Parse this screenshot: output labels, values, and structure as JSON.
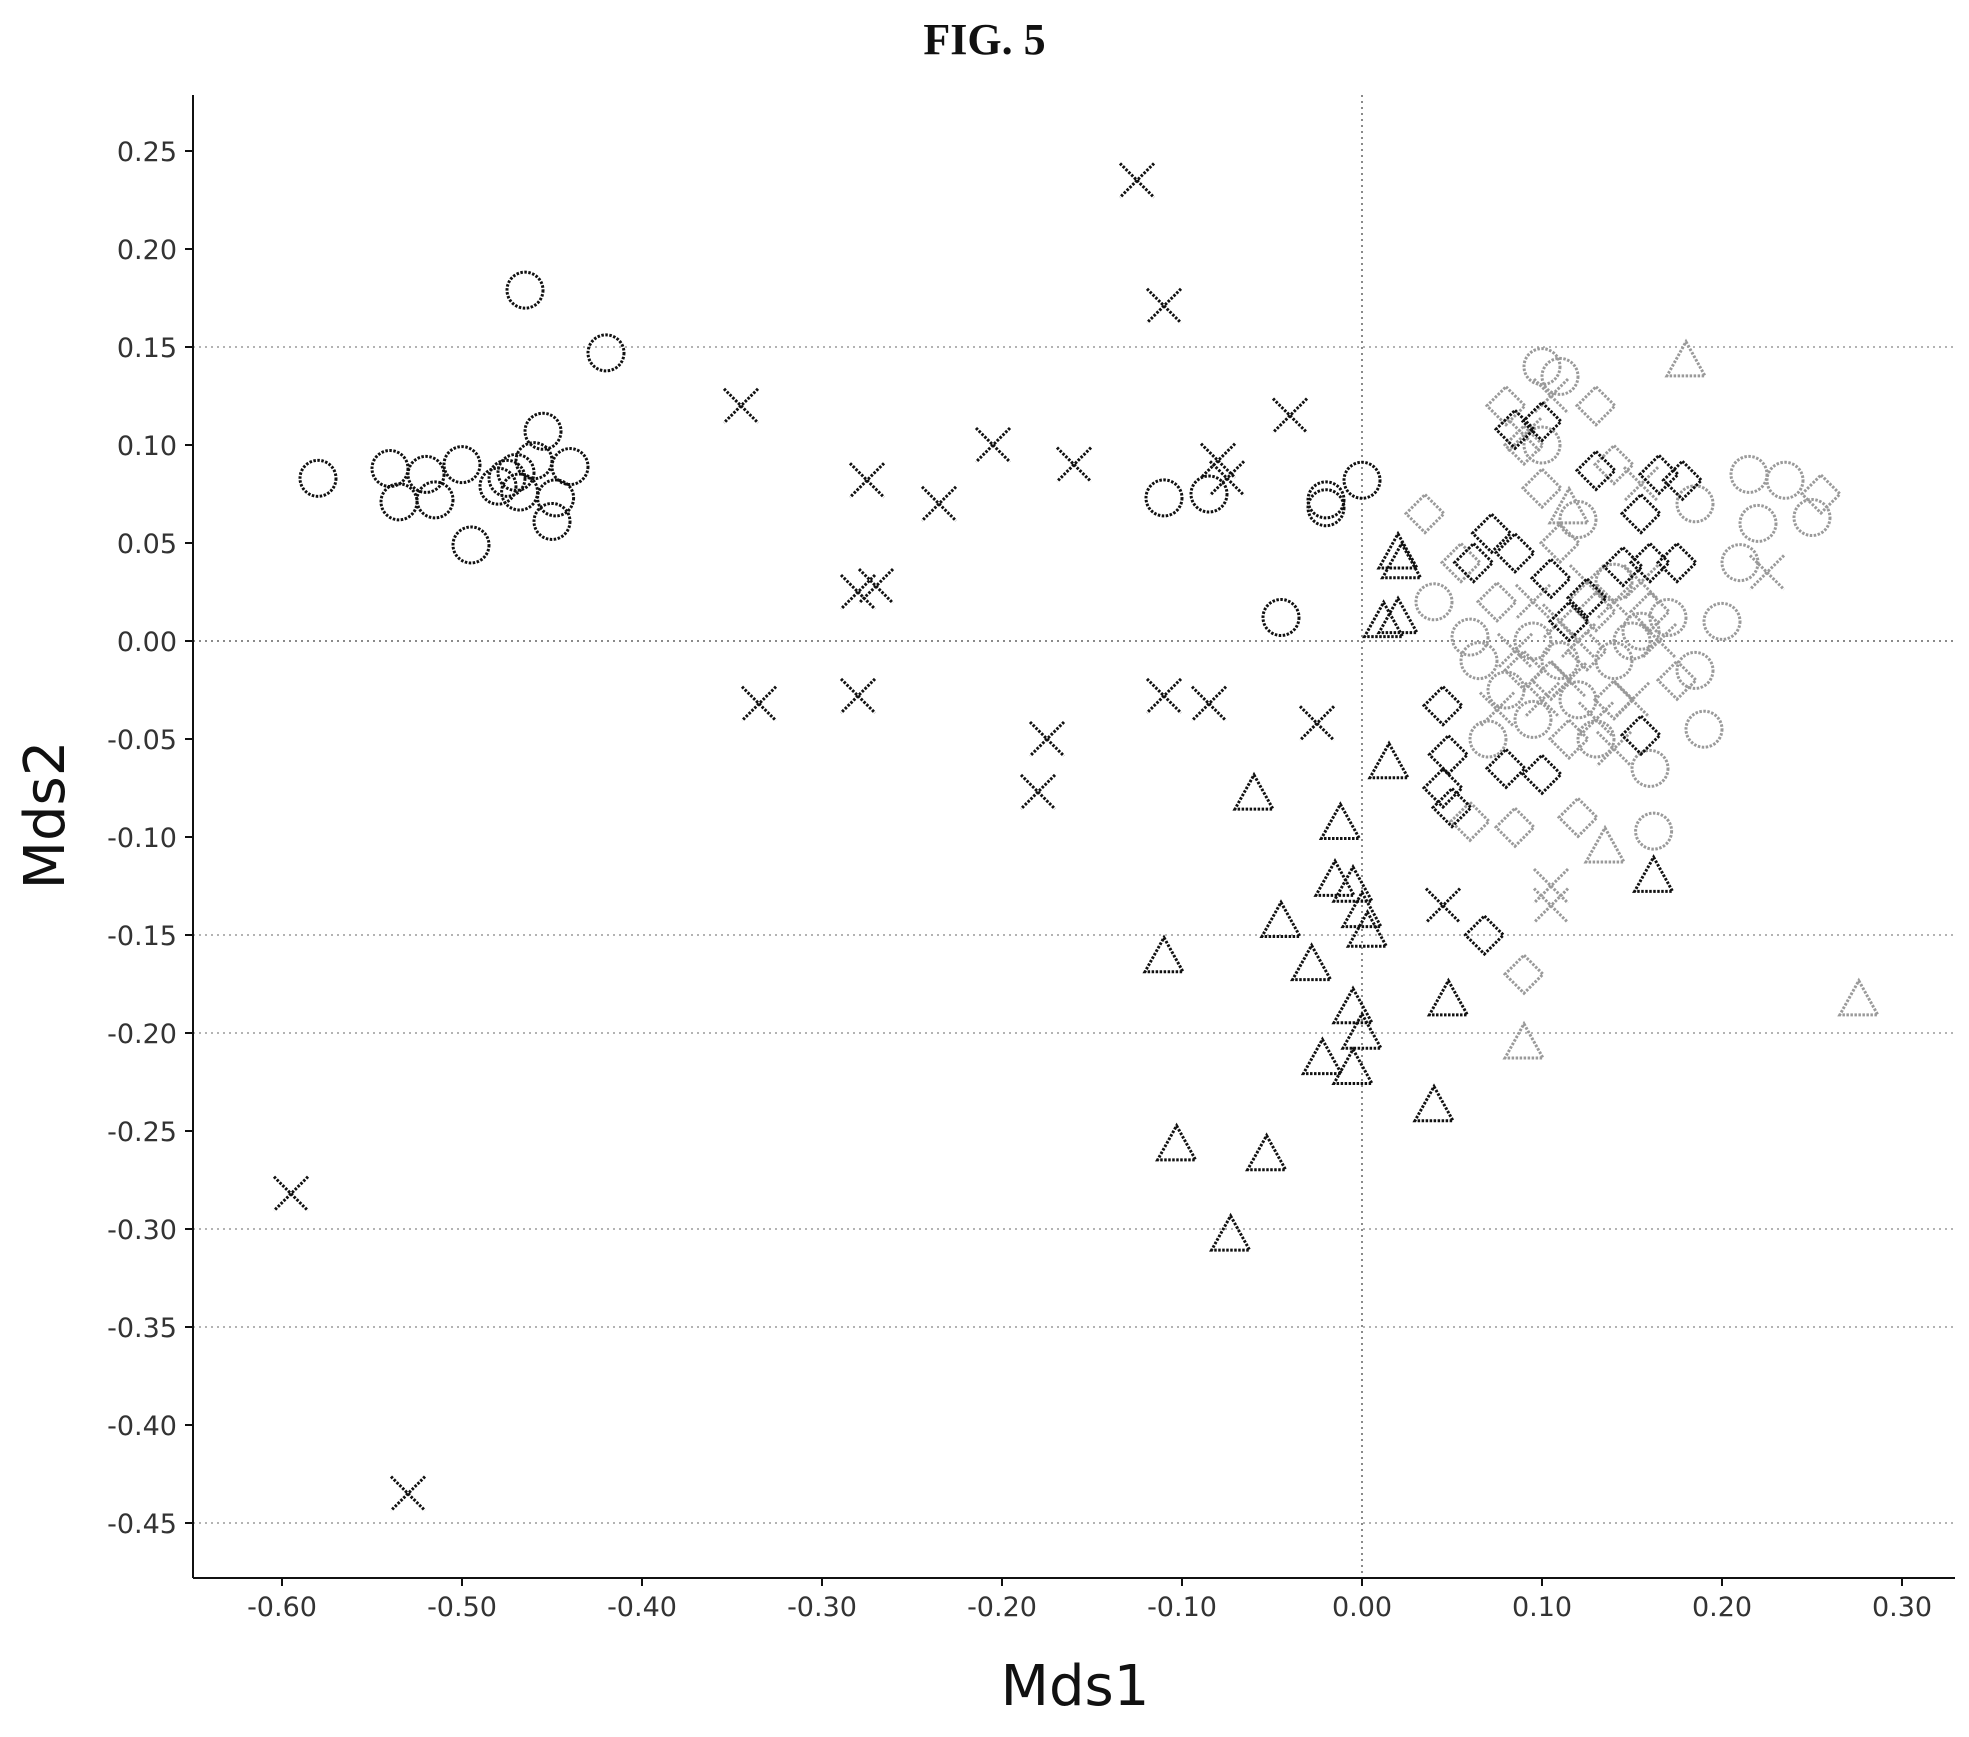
{
  "figure": {
    "title": "FIG. 5"
  },
  "chart_data": {
    "type": "scatter",
    "title": "FIG. 5",
    "xlabel": "Mds1",
    "ylabel": "Mds2",
    "xlim": [
      -0.65,
      0.33
    ],
    "ylim": [
      -0.48,
      0.28
    ],
    "xticks": [
      "-0.60",
      "-0.50",
      "-0.40",
      "-0.30",
      "-0.20",
      "-0.10",
      "0.00",
      "0.10",
      "0.20",
      "0.30"
    ],
    "yticks": [
      "0.25",
      "0.20",
      "0.15",
      "0.10",
      "0.05",
      "0.00",
      "-0.05",
      "-0.10",
      "-0.15",
      "-0.20",
      "-0.25",
      "-0.30",
      "-0.35",
      "-0.40",
      "-0.45"
    ],
    "grid": "horizontal dotted lines at 0.15, 0.00, -0.15, -0.20, -0.30, -0.35, -0.45; dotted zero lines",
    "legend": "none",
    "series": [
      {
        "marker": "circle",
        "color": "#111111",
        "points": [
          [
            -0.58,
            0.083
          ],
          [
            -0.54,
            0.088
          ],
          [
            -0.535,
            0.071
          ],
          [
            -0.52,
            0.085
          ],
          [
            -0.515,
            0.072
          ],
          [
            -0.5,
            0.09
          ],
          [
            -0.495,
            0.049
          ],
          [
            -0.48,
            0.079
          ],
          [
            -0.475,
            0.083
          ],
          [
            -0.47,
            0.086
          ],
          [
            -0.468,
            0.076
          ],
          [
            -0.465,
            0.179
          ],
          [
            -0.46,
            0.092
          ],
          [
            -0.455,
            0.107
          ],
          [
            -0.45,
            0.061
          ],
          [
            -0.448,
            0.073
          ],
          [
            -0.44,
            0.089
          ],
          [
            -0.42,
            0.147
          ],
          [
            -0.11,
            0.073
          ],
          [
            -0.085,
            0.075
          ],
          [
            -0.02,
            0.068
          ],
          [
            -0.02,
            0.072
          ],
          [
            0.0,
            0.082
          ],
          [
            -0.045,
            0.012
          ]
        ]
      },
      {
        "marker": "x",
        "color": "#111111",
        "points": [
          [
            -0.125,
            0.235
          ],
          [
            -0.11,
            0.171
          ],
          [
            -0.345,
            0.12
          ],
          [
            -0.205,
            0.1
          ],
          [
            -0.16,
            0.09
          ],
          [
            -0.275,
            0.082
          ],
          [
            -0.235,
            0.07
          ],
          [
            -0.08,
            0.092
          ],
          [
            -0.075,
            0.083
          ],
          [
            -0.04,
            0.115
          ],
          [
            -0.28,
            0.025
          ],
          [
            -0.27,
            0.028
          ],
          [
            -0.335,
            -0.032
          ],
          [
            -0.28,
            -0.028
          ],
          [
            -0.11,
            -0.028
          ],
          [
            -0.085,
            -0.032
          ],
          [
            -0.175,
            -0.05
          ],
          [
            -0.18,
            -0.077
          ],
          [
            -0.025,
            -0.042
          ],
          [
            -0.595,
            -0.282
          ],
          [
            -0.53,
            -0.435
          ],
          [
            0.045,
            -0.135
          ]
        ]
      },
      {
        "marker": "triangle",
        "color": "#111111",
        "points": [
          [
            0.02,
            0.045
          ],
          [
            0.022,
            0.04
          ],
          [
            0.012,
            0.01
          ],
          [
            0.02,
            0.012
          ],
          [
            0.015,
            -0.062
          ],
          [
            -0.06,
            -0.078
          ],
          [
            -0.012,
            -0.093
          ],
          [
            -0.015,
            -0.122
          ],
          [
            -0.005,
            -0.125
          ],
          [
            0.0,
            -0.138
          ],
          [
            0.003,
            -0.148
          ],
          [
            -0.045,
            -0.143
          ],
          [
            -0.11,
            -0.161
          ],
          [
            -0.028,
            -0.165
          ],
          [
            0.048,
            -0.183
          ],
          [
            -0.005,
            -0.187
          ],
          [
            0.0,
            -0.2
          ],
          [
            -0.022,
            -0.213
          ],
          [
            -0.005,
            -0.218
          ],
          [
            0.04,
            -0.237
          ],
          [
            -0.103,
            -0.257
          ],
          [
            -0.053,
            -0.262
          ],
          [
            -0.073,
            -0.303
          ],
          [
            0.162,
            -0.12
          ]
        ]
      },
      {
        "marker": "diamond",
        "color": "#111111",
        "points": [
          [
            0.045,
            -0.033
          ],
          [
            0.048,
            -0.058
          ],
          [
            0.045,
            -0.075
          ],
          [
            0.05,
            -0.085
          ],
          [
            0.062,
            0.04
          ],
          [
            0.072,
            0.055
          ],
          [
            0.085,
            0.045
          ],
          [
            0.085,
            0.108
          ],
          [
            0.1,
            0.112
          ],
          [
            0.105,
            0.032
          ],
          [
            0.115,
            0.01
          ],
          [
            0.125,
            0.022
          ],
          [
            0.13,
            0.087
          ],
          [
            0.145,
            0.038
          ],
          [
            0.155,
            0.065
          ],
          [
            0.16,
            0.04
          ],
          [
            0.165,
            0.085
          ],
          [
            0.175,
            0.04
          ],
          [
            0.178,
            0.082
          ],
          [
            0.155,
            -0.048
          ],
          [
            0.1,
            -0.068
          ],
          [
            0.08,
            -0.065
          ],
          [
            0.068,
            -0.15
          ]
        ]
      },
      {
        "marker": "triangle",
        "color": "#9a9a9a",
        "points": [
          [
            0.18,
            0.143
          ],
          [
            0.276,
            -0.183
          ],
          [
            0.09,
            -0.205
          ],
          [
            0.135,
            -0.105
          ],
          [
            0.115,
            0.068
          ]
        ]
      },
      {
        "marker": "circle",
        "color": "#9a9a9a",
        "points": [
          [
            0.1,
            0.14
          ],
          [
            0.11,
            0.135
          ],
          [
            0.1,
            0.1
          ],
          [
            0.12,
            0.062
          ],
          [
            0.14,
            0.03
          ],
          [
            0.155,
            0.005
          ],
          [
            0.17,
            0.012
          ],
          [
            0.185,
            -0.015
          ],
          [
            0.19,
            -0.045
          ],
          [
            0.16,
            -0.065
          ],
          [
            0.162,
            -0.097
          ],
          [
            0.2,
            0.01
          ],
          [
            0.185,
            0.07
          ],
          [
            0.215,
            0.085
          ],
          [
            0.22,
            0.06
          ],
          [
            0.235,
            0.082
          ],
          [
            0.25,
            0.063
          ],
          [
            0.21,
            0.04
          ],
          [
            0.12,
            -0.03
          ],
          [
            0.13,
            -0.05
          ],
          [
            0.095,
            -0.04
          ],
          [
            0.08,
            -0.025
          ],
          [
            0.065,
            -0.01
          ],
          [
            0.07,
            -0.05
          ],
          [
            0.095,
            0.0
          ],
          [
            0.04,
            0.02
          ],
          [
            0.06,
            0.002
          ],
          [
            0.14,
            -0.01
          ],
          [
            0.11,
            -0.01
          ],
          [
            0.15,
            0.0
          ]
        ]
      },
      {
        "marker": "diamond",
        "color": "#9a9a9a",
        "points": [
          [
            0.08,
            0.12
          ],
          [
            0.09,
            0.1
          ],
          [
            0.13,
            0.12
          ],
          [
            0.035,
            0.065
          ],
          [
            0.055,
            0.04
          ],
          [
            0.06,
            -0.092
          ],
          [
            0.085,
            -0.095
          ],
          [
            0.12,
            -0.09
          ],
          [
            0.09,
            -0.17
          ],
          [
            0.255,
            0.075
          ],
          [
            0.14,
            0.09
          ],
          [
            0.1,
            0.078
          ],
          [
            0.11,
            0.05
          ],
          [
            0.075,
            0.02
          ],
          [
            0.09,
            -0.015
          ],
          [
            0.125,
            -0.005
          ],
          [
            0.14,
            -0.03
          ],
          [
            0.105,
            -0.02
          ],
          [
            0.13,
            0.015
          ],
          [
            0.16,
            0.015
          ],
          [
            0.175,
            -0.02
          ],
          [
            0.115,
            -0.05
          ]
        ]
      },
      {
        "marker": "x",
        "color": "#9a9a9a",
        "points": [
          [
            0.105,
            0.125
          ],
          [
            0.09,
            0.105
          ],
          [
            0.155,
            0.08
          ],
          [
            0.225,
            0.035
          ],
          [
            0.105,
            -0.135
          ],
          [
            0.105,
            -0.125
          ],
          [
            0.095,
            0.02
          ],
          [
            0.12,
            0.0
          ],
          [
            0.14,
            0.02
          ],
          [
            0.115,
            -0.02
          ],
          [
            0.15,
            -0.03
          ],
          [
            0.085,
            -0.005
          ],
          [
            0.13,
            -0.04
          ],
          [
            0.1,
            -0.03
          ],
          [
            0.165,
            0.0
          ],
          [
            0.125,
            0.03
          ],
          [
            0.075,
            -0.035
          ],
          [
            0.14,
            -0.055
          ],
          [
            0.11,
            0.01
          ],
          [
            0.155,
            0.03
          ]
        ]
      }
    ]
  }
}
